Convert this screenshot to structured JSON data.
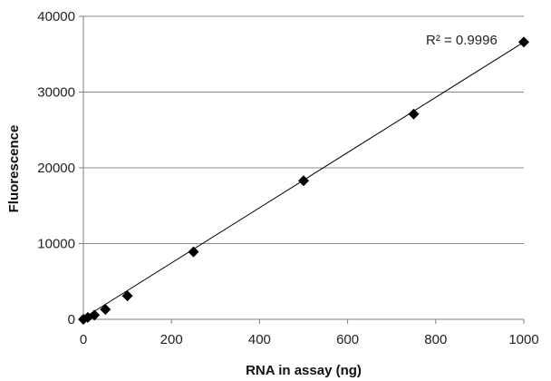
{
  "chart_data": {
    "type": "scatter",
    "xlabel": "RNA in assay (ng)",
    "ylabel": "Fluorescence",
    "xlim": [
      0,
      1000
    ],
    "ylim": [
      0,
      40000
    ],
    "x_ticks": [
      0,
      200,
      400,
      600,
      800,
      1000
    ],
    "y_ticks": [
      0,
      10000,
      20000,
      30000,
      40000
    ],
    "grid": {
      "horizontal": true,
      "vertical": false
    },
    "legend": "none",
    "series": [
      {
        "marker": "diamond",
        "color": "#000000",
        "points": [
          {
            "x": 0,
            "y": 0
          },
          {
            "x": 10,
            "y": 250
          },
          {
            "x": 25,
            "y": 550
          },
          {
            "x": 50,
            "y": 1300
          },
          {
            "x": 100,
            "y": 3100
          },
          {
            "x": 250,
            "y": 8900
          },
          {
            "x": 500,
            "y": 18300
          },
          {
            "x": 750,
            "y": 27100
          },
          {
            "x": 1000,
            "y": 36600
          }
        ]
      }
    ],
    "trendline": {
      "type": "linear",
      "start": {
        "x": 0,
        "y": 150
      },
      "end": {
        "x": 1000,
        "y": 36600
      },
      "color": "#000000"
    },
    "annotations": [
      {
        "text": "R² = 0.9996"
      }
    ]
  }
}
